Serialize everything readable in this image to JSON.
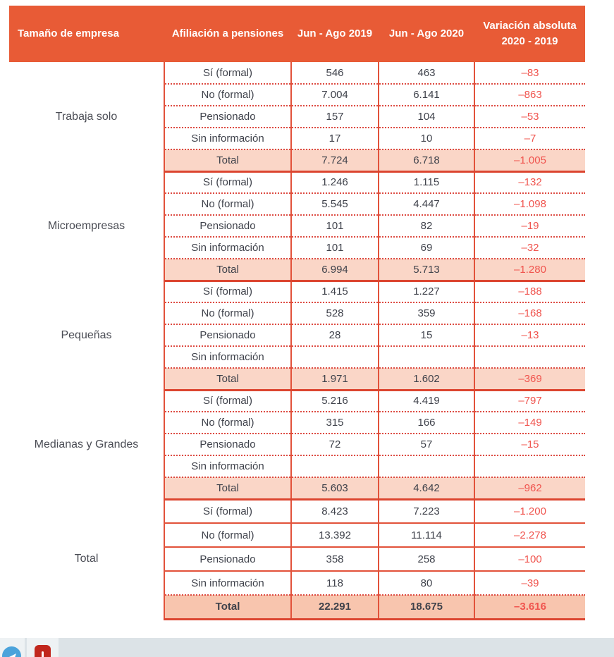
{
  "chart_data": {
    "type": "table",
    "columns": [
      "Tamaño de empresa",
      "Afiliación a pensiones",
      "Jun - Ago 2019",
      "Jun - Ago 2020",
      "Variación absoluta 2020 - 2019"
    ],
    "groups": [
      {
        "name": "Trabaja solo",
        "rows": [
          {
            "label": "Sí (formal)",
            "y2019": "546",
            "y2020": "463",
            "variation": "–83",
            "is_total": false
          },
          {
            "label": "No (formal)",
            "y2019": "7.004",
            "y2020": "6.141",
            "variation": "–863",
            "is_total": false
          },
          {
            "label": "Pensionado",
            "y2019": "157",
            "y2020": "104",
            "variation": "–53",
            "is_total": false
          },
          {
            "label": "Sin información",
            "y2019": "17",
            "y2020": "10",
            "variation": "–7",
            "is_total": false
          },
          {
            "label": "Total",
            "y2019": "7.724",
            "y2020": "6.718",
            "variation": "–1.005",
            "is_total": true
          }
        ]
      },
      {
        "name": "Microempresas",
        "rows": [
          {
            "label": "Sí (formal)",
            "y2019": "1.246",
            "y2020": "1.115",
            "variation": "–132",
            "is_total": false
          },
          {
            "label": "No (formal)",
            "y2019": "5.545",
            "y2020": "4.447",
            "variation": "–1.098",
            "is_total": false
          },
          {
            "label": "Pensionado",
            "y2019": "101",
            "y2020": "82",
            "variation": "–19",
            "is_total": false
          },
          {
            "label": "Sin información",
            "y2019": "101",
            "y2020": "69",
            "variation": "–32",
            "is_total": false
          },
          {
            "label": "Total",
            "y2019": "6.994",
            "y2020": "5.713",
            "variation": "–1.280",
            "is_total": true
          }
        ]
      },
      {
        "name": "Pequeñas",
        "rows": [
          {
            "label": "Sí (formal)",
            "y2019": "1.415",
            "y2020": "1.227",
            "variation": "–188",
            "is_total": false
          },
          {
            "label": "No (formal)",
            "y2019": "528",
            "y2020": "359",
            "variation": "–168",
            "is_total": false
          },
          {
            "label": "Pensionado",
            "y2019": "28",
            "y2020": "15",
            "variation": "–13",
            "is_total": false
          },
          {
            "label": "Sin información",
            "y2019": "",
            "y2020": "",
            "variation": "",
            "is_total": false
          },
          {
            "label": "Total",
            "y2019": "1.971",
            "y2020": "1.602",
            "variation": "–369",
            "is_total": true
          }
        ]
      },
      {
        "name": "Medianas y Grandes",
        "rows": [
          {
            "label": "Sí (formal)",
            "y2019": "5.216",
            "y2020": "4.419",
            "variation": "–797",
            "is_total": false
          },
          {
            "label": "No (formal)",
            "y2019": "315",
            "y2020": "166",
            "variation": "–149",
            "is_total": false
          },
          {
            "label": "Pensionado",
            "y2019": "72",
            "y2020": "57",
            "variation": "–15",
            "is_total": false
          },
          {
            "label": "Sin información",
            "y2019": "",
            "y2020": "",
            "variation": "",
            "is_total": false
          },
          {
            "label": "Total",
            "y2019": "5.603",
            "y2020": "4.642",
            "variation": "–962",
            "is_total": true
          }
        ]
      },
      {
        "name": "Total",
        "rows": [
          {
            "label": "Sí (formal)",
            "y2019": "8.423",
            "y2020": "7.223",
            "variation": "–1.200",
            "is_total": false
          },
          {
            "label": "No (formal)",
            "y2019": "13.392",
            "y2020": "11.114",
            "variation": "–2.278",
            "is_total": false
          },
          {
            "label": "Pensionado",
            "y2019": "358",
            "y2020": "258",
            "variation": "–100",
            "is_total": false
          },
          {
            "label": "Sin información",
            "y2019": "118",
            "y2020": "80",
            "variation": "–39",
            "is_total": false
          },
          {
            "label": "Total",
            "y2019": "22.291",
            "y2020": "18.675",
            "variation": "–3.616",
            "is_total": true
          }
        ]
      }
    ]
  },
  "colors": {
    "header_bg": "#E85B36",
    "solid_border": "#E2523A",
    "dotted_border": "#DD4B42",
    "total_row_bg": "#FAD6C7",
    "grand_total_bg": "#F8C5AE",
    "body_text": "#3F424B",
    "variation_text": "#F0544E",
    "footer_bg": "#DCE3E7",
    "telegram_blue": "#4BA3DB",
    "badge_red": "#C1271D"
  },
  "footer": {
    "icons": [
      "telegram-icon",
      "red-badge-icon"
    ]
  }
}
